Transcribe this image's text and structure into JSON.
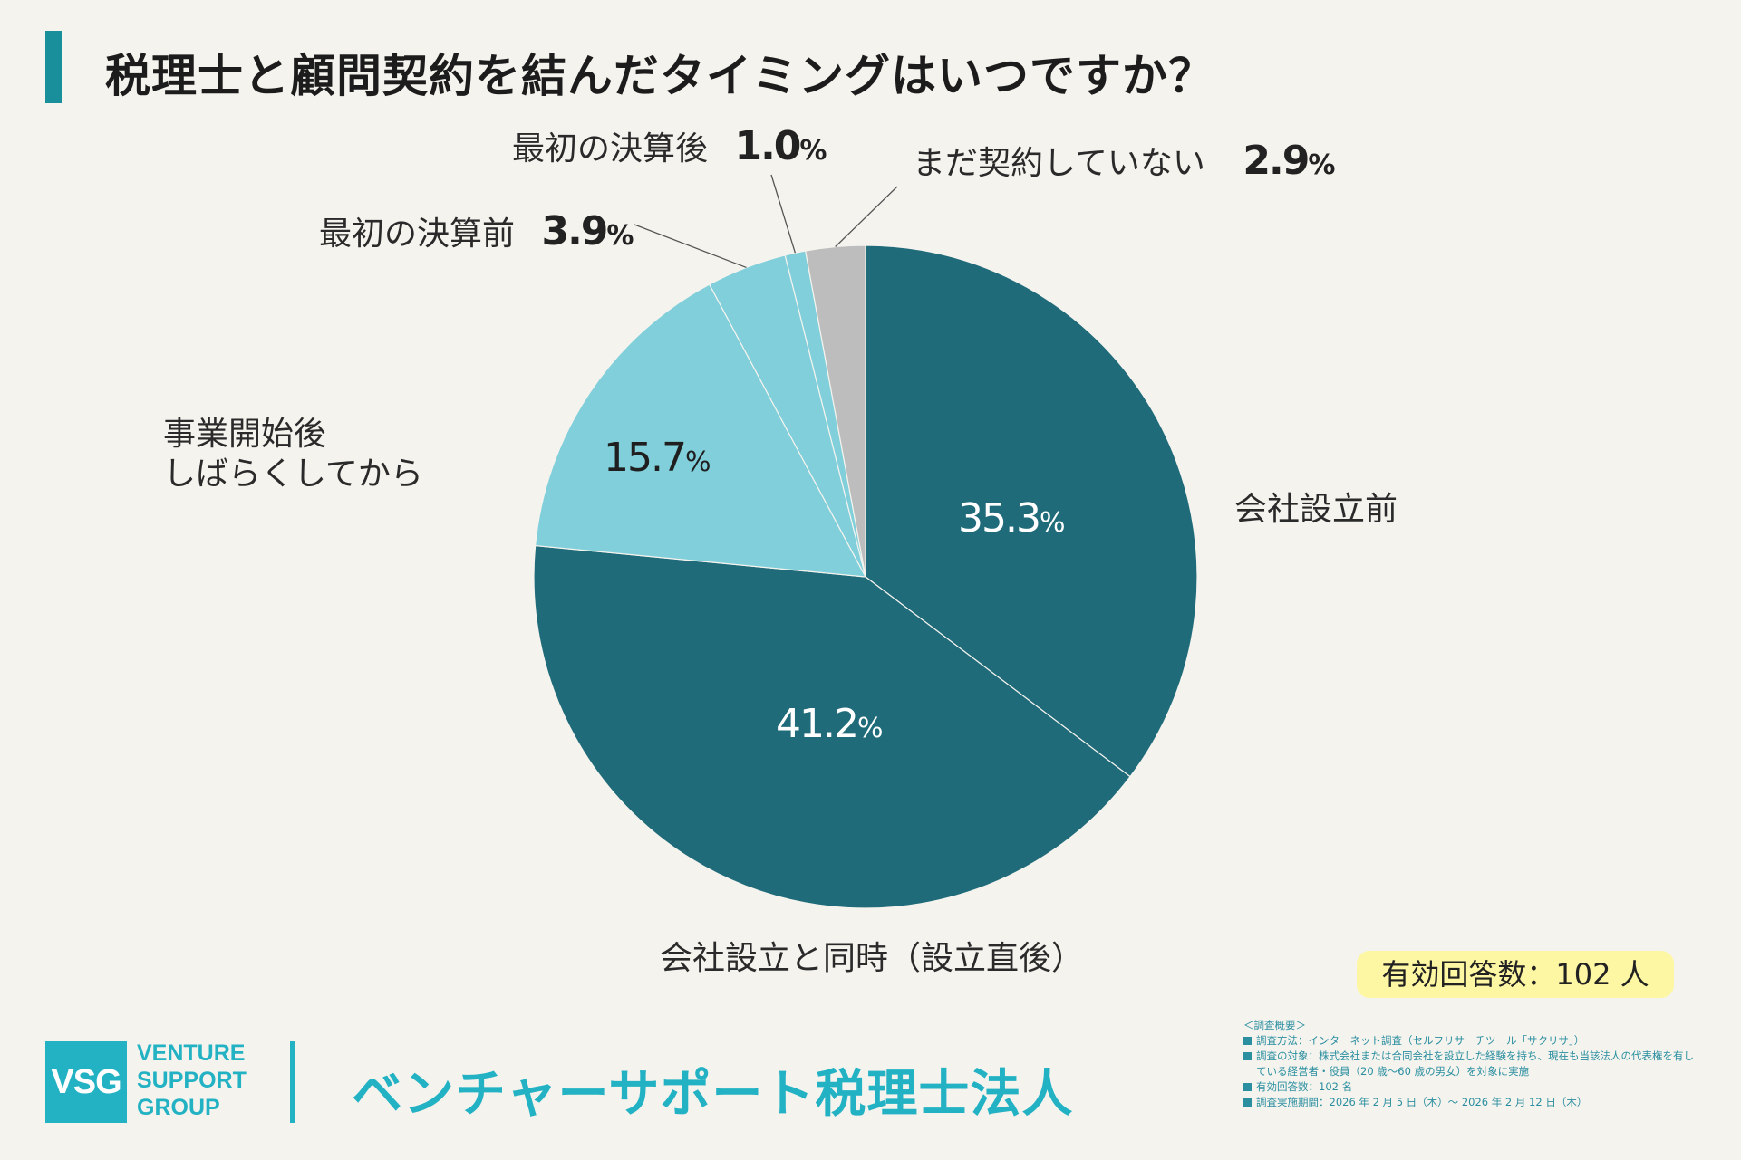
{
  "title": "税理士と顧問契約を結んだタイミングはいつですか？",
  "colors": {
    "dark_teal": "#1f6b7a",
    "light_teal": "#80cfda",
    "gray": "#bdbdbd",
    "accent": "#23b2c3",
    "title_bar": "#1a8f9c",
    "badge_bg": "#fdf6a3"
  },
  "chart_data": {
    "type": "pie",
    "title": "税理士と顧問契約を結んだタイミングはいつですか？",
    "slices": [
      {
        "label": "会社設立前",
        "value": 35.3,
        "display": "35.3",
        "color": "#1f6b7a"
      },
      {
        "label": "会社設立と同時（設立直後）",
        "value": 41.2,
        "display": "41.2",
        "color": "#1f6b7a"
      },
      {
        "label": "事業開始後しばらくしてから",
        "label_lines": [
          "事業開始後",
          "しばらくしてから"
        ],
        "value": 15.7,
        "display": "15.7",
        "color": "#80cfda"
      },
      {
        "label": "最初の決算前",
        "value": 3.9,
        "display": "3.9",
        "color": "#80cfda"
      },
      {
        "label": "最初の決算後",
        "value": 1.0,
        "display": "1.0",
        "color": "#80cfda"
      },
      {
        "label": "まだ契約していない",
        "value": 2.9,
        "display": "2.9",
        "color": "#bdbdbd"
      }
    ],
    "unit": "%",
    "start": "12 o'clock",
    "direction": "clockwise"
  },
  "responses_badge": "有効回答数：102 人",
  "logo": {
    "abbr": "VSG",
    "lines": [
      "VENTURE",
      "SUPPORT",
      "GROUP"
    ]
  },
  "company_name": "ベンチャーサポート税理士法人",
  "survey": {
    "heading": "＜調査概要＞",
    "items": [
      "調査方法：インターネット調査（セルフリサーチツール「サクリサ」）",
      "調査の対象：株式会社または合同会社を設立した経験を持ち、現在も当該法人の代表権を有している経営者・役員（20 歳～60 歳の男女）を対象に実施",
      "有効回答数：102 名",
      "調査実施期間：2026 年 2 月 5 日（木）～ 2026 年 2 月 12 日（木）"
    ]
  }
}
